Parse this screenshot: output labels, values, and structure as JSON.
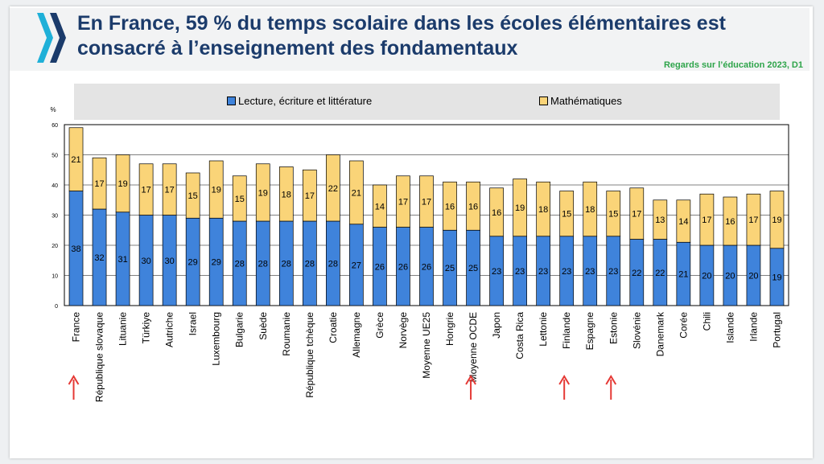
{
  "title": "En France, 59 % du temps scolaire dans les écoles élémentaires est consacré à l’enseignement des fondamentaux",
  "source": "Regards sur l’éducation 2023, D1",
  "colors": {
    "reading": "#3f83db",
    "math": "#fad478",
    "title": "#1b3b6b",
    "source": "#2ea44a",
    "arrow": "#e53935"
  },
  "chart_data": {
    "type": "bar",
    "stacked": true,
    "ylabel": "%",
    "ylim": [
      0,
      60
    ],
    "yticks": [
      0,
      10,
      20,
      30,
      40,
      50,
      60
    ],
    "grid": true,
    "legend_position": "top",
    "categories": [
      "France",
      "République slovaque",
      "Lituanie",
      "Türkiye",
      "Autriche",
      "Israel",
      "Luxembourg",
      "Bulgarie",
      "Suède",
      "Roumanie",
      "République tchèque",
      "Croatie",
      "Allemagne",
      "Grèce",
      "Norvège",
      "Moyenne UE25",
      "Hongrie",
      "Moyenne OCDE",
      "Japon",
      "Costa Rica",
      "Lettonie",
      "Finlande",
      "Espagne",
      "Estonie",
      "Slovénie",
      "Danemark",
      "Corée",
      "Chili",
      "Islande",
      "Irlande",
      "Portugal"
    ],
    "series": [
      {
        "name": "Lecture, écriture et littérature",
        "values": [
          38,
          32,
          31,
          30,
          30,
          29,
          29,
          28,
          28,
          28,
          28,
          28,
          27,
          26,
          26,
          26,
          25,
          25,
          23,
          23,
          23,
          23,
          23,
          23,
          22,
          22,
          21,
          20,
          20,
          20,
          19
        ]
      },
      {
        "name": "Mathématiques",
        "values": [
          21,
          17,
          19,
          17,
          17,
          15,
          19,
          15,
          19,
          18,
          17,
          22,
          21,
          14,
          17,
          17,
          16,
          16,
          16,
          19,
          18,
          15,
          18,
          15,
          17,
          13,
          14,
          17,
          16,
          17,
          19
        ]
      }
    ],
    "highlighted": [
      "France",
      "Moyenne OCDE",
      "Finlande",
      "Estonie"
    ]
  }
}
